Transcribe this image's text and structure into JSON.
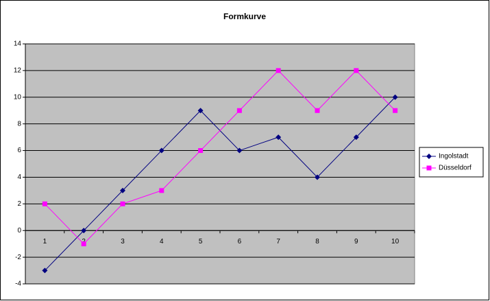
{
  "chart_data": {
    "type": "line",
    "title": "Formkurve",
    "categories": [
      "1",
      "2",
      "3",
      "4",
      "5",
      "6",
      "7",
      "8",
      "9",
      "10"
    ],
    "series": [
      {
        "name": "Ingolstadt",
        "color": "#000080",
        "marker": "diamond",
        "values": [
          -3,
          0,
          3,
          6,
          9,
          6,
          7,
          4,
          7,
          10
        ]
      },
      {
        "name": "Düsseldorf",
        "color": "#ff00ff",
        "marker": "square",
        "values": [
          2,
          -1,
          2,
          3,
          6,
          9,
          12,
          9,
          12,
          9
        ]
      }
    ],
    "ylim": [
      -4,
      14
    ],
    "yticks": [
      -4,
      -2,
      0,
      2,
      4,
      6,
      8,
      10,
      12,
      14
    ],
    "grid": true,
    "legend": "right"
  }
}
